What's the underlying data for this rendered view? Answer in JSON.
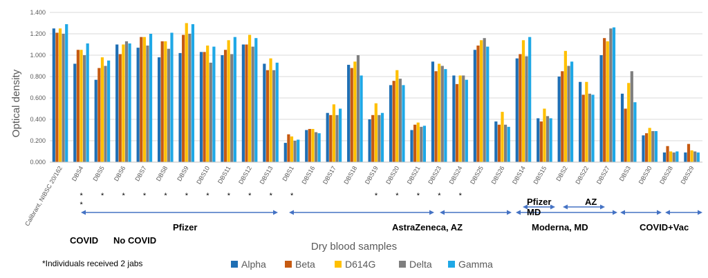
{
  "chart_data": {
    "type": "bar",
    "ylabel": "Optical density",
    "xlabel": "Dry blood samples",
    "ylim": [
      0,
      1.4
    ],
    "yticks": [
      "0.000",
      "0.200",
      "0.400",
      "0.600",
      "0.800",
      "1.000",
      "1.200",
      "1.400"
    ],
    "grid": true,
    "legend_position": "bottom",
    "categories": [
      "Calibrant, NIBSC 20/162",
      "DBS4",
      "DBS5",
      "DBS6",
      "DBS7",
      "DBS8",
      "DBS9",
      "DBS10",
      "DBS11",
      "DBS12",
      "DBS13",
      "DBS1",
      "DBS16",
      "DBS17",
      "DBS18",
      "DBS19",
      "DBS20",
      "DBS21",
      "DBS23",
      "DBS24",
      "DBS25",
      "DBS26",
      "DBS14",
      "DBS15",
      "DBS2",
      "DBS22",
      "DBS27",
      "DBS3",
      "DBS30",
      "DBS28",
      "DBS29"
    ],
    "series": [
      {
        "name": "Alpha",
        "color": "#1f6fb4",
        "values": [
          1.25,
          0.92,
          0.77,
          1.1,
          1.07,
          0.98,
          1.02,
          1.03,
          1.0,
          1.1,
          0.92,
          0.18,
          0.3,
          0.46,
          0.91,
          0.4,
          0.72,
          0.3,
          0.94,
          0.81,
          1.05,
          0.38,
          0.97,
          0.41,
          0.8,
          0.75,
          1.0,
          0.64,
          0.25,
          0.09,
          0.09
        ]
      },
      {
        "name": "Beta",
        "color": "#c65a11",
        "values": [
          1.21,
          1.05,
          0.88,
          1.01,
          1.17,
          1.13,
          1.19,
          1.03,
          1.05,
          1.1,
          0.86,
          0.26,
          0.31,
          0.44,
          0.88,
          0.44,
          0.76,
          0.35,
          0.85,
          0.73,
          1.09,
          0.35,
          1.01,
          0.38,
          0.85,
          0.63,
          1.16,
          0.5,
          0.27,
          0.15,
          0.17
        ]
      },
      {
        "name": "D614G",
        "color": "#ffc000",
        "values": [
          1.25,
          1.05,
          0.98,
          1.1,
          1.17,
          1.13,
          1.3,
          1.09,
          1.14,
          1.19,
          0.97,
          0.24,
          0.31,
          0.54,
          0.94,
          0.55,
          0.86,
          0.37,
          0.92,
          0.81,
          1.14,
          0.47,
          1.14,
          0.5,
          1.04,
          0.75,
          1.13,
          0.74,
          0.32,
          0.1,
          0.11
        ]
      },
      {
        "name": "Delta",
        "color": "#7f7f7f",
        "values": [
          1.2,
          1.0,
          0.9,
          1.13,
          1.09,
          1.06,
          1.2,
          0.93,
          1.01,
          1.08,
          0.86,
          0.2,
          0.28,
          0.44,
          1.0,
          0.44,
          0.78,
          0.33,
          0.9,
          0.81,
          1.16,
          0.35,
          0.99,
          0.43,
          0.9,
          0.64,
          1.25,
          0.85,
          0.29,
          0.09,
          0.1
        ]
      },
      {
        "name": "Gamma",
        "color": "#1fa8e6",
        "values": [
          1.29,
          1.11,
          0.95,
          1.11,
          1.2,
          1.21,
          1.29,
          1.08,
          1.17,
          1.16,
          0.93,
          0.21,
          0.27,
          0.5,
          0.81,
          0.46,
          0.72,
          0.34,
          0.87,
          0.77,
          1.08,
          0.33,
          1.17,
          0.41,
          0.94,
          0.63,
          1.26,
          0.56,
          0.29,
          0.1,
          0.09
        ]
      }
    ],
    "annotations": {
      "star": "*",
      "star_after_categories": [
        "DBS4",
        "DBS5",
        "DBS6",
        "DBS7",
        "DBS8",
        "DBS9",
        "DBS10",
        "DBS11",
        "DBS12",
        "DBS13",
        "DBS1",
        "DBS19",
        "DBS20",
        "DBS21",
        "DBS23",
        "DBS24"
      ],
      "groups": {
        "pfizer": "Pfizer",
        "astrazeneca": "AstraZeneca, AZ",
        "moderna": "Moderna, MD",
        "covid_vac": "COVID+Vac",
        "covid": "COVID",
        "no_covid": "No COVID",
        "sub_pfizer": "Pfizer",
        "sub_az": "AZ",
        "sub_md": "MD"
      },
      "footnote": "*Individuals received 2 jabs"
    }
  }
}
